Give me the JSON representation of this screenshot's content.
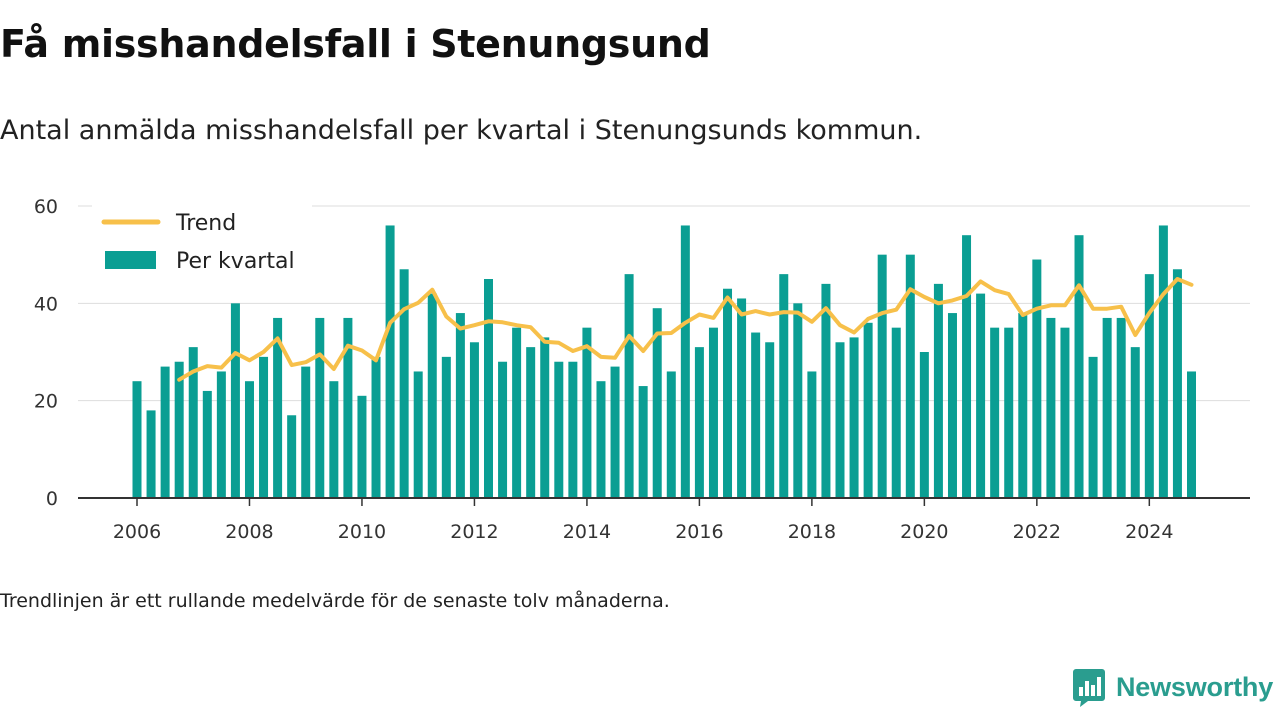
{
  "title": "Få misshandelsfall i Stenungsund",
  "subtitle": "Antal anmälda misshandelsfall per kvartal i Stenungsunds kommun.",
  "note": "Trendlinjen är ett rullande medelvärde för de senaste tolv månaderna.",
  "brand": {
    "name": "Newsworthy",
    "icon": "newsworthy-logo-icon"
  },
  "colors": {
    "bars": "#0a9e93",
    "trend": "#f7c04a",
    "axis": "#333333",
    "grid": "#dddddd",
    "brand": "#2a9d8f"
  },
  "chart_data": {
    "type": "bar",
    "x_start": "2006-Q1",
    "x_ticks": [
      "2006",
      "2008",
      "2010",
      "2012",
      "2014",
      "2016",
      "2018",
      "2020",
      "2022",
      "2024"
    ],
    "y_ticks": [
      "0",
      "20",
      "40",
      "60"
    ],
    "ylim": [
      0,
      60
    ],
    "xlabel": "",
    "ylabel": "",
    "grid": true,
    "legend": "top-left",
    "series": [
      {
        "name": "Per kvartal",
        "type": "bar",
        "values": [
          24,
          18,
          27,
          28,
          31,
          22,
          26,
          40,
          24,
          29,
          37,
          17,
          27,
          37,
          24,
          37,
          21,
          29,
          56,
          47,
          26,
          42,
          29,
          38,
          32,
          45,
          28,
          35,
          31,
          33,
          28,
          28,
          35,
          24,
          27,
          46,
          23,
          39,
          26,
          56,
          31,
          35,
          43,
          41,
          34,
          32,
          46,
          40,
          26,
          44,
          32,
          33,
          36,
          50,
          35,
          50,
          30,
          44,
          38,
          54,
          42,
          35,
          35,
          38,
          49,
          37,
          35,
          54,
          29,
          37,
          37,
          31,
          46,
          56,
          47,
          26
        ]
      },
      {
        "name": "Trend",
        "type": "line",
        "start_index": 3,
        "values": [
          24.3,
          26,
          27.1,
          26.8,
          29.8,
          28.3,
          30,
          32.8,
          27.3,
          27.9,
          29.5,
          26.5,
          31.3,
          30.3,
          28.3,
          36,
          38.8,
          40.1,
          42.8,
          37.3,
          34.8,
          35.5,
          36.3,
          36.1,
          35.5,
          35.1,
          32.1,
          31.9,
          30.2,
          31.2,
          29,
          28.8,
          33.3,
          30.2,
          33.8,
          33.9,
          36,
          37.7,
          37,
          41.2,
          37.7,
          38.4,
          37.7,
          38.2,
          38.1,
          36.2,
          39,
          35.5,
          34,
          36.8,
          38,
          38.7,
          42.9,
          41.3,
          40,
          40.6,
          41.5,
          44.5,
          42.7,
          41.9,
          37.6,
          38.9,
          39.6,
          39.6,
          43.7,
          38.9,
          38.9,
          39.3,
          33.5,
          38,
          41.9,
          45,
          43.8
        ]
      }
    ]
  }
}
